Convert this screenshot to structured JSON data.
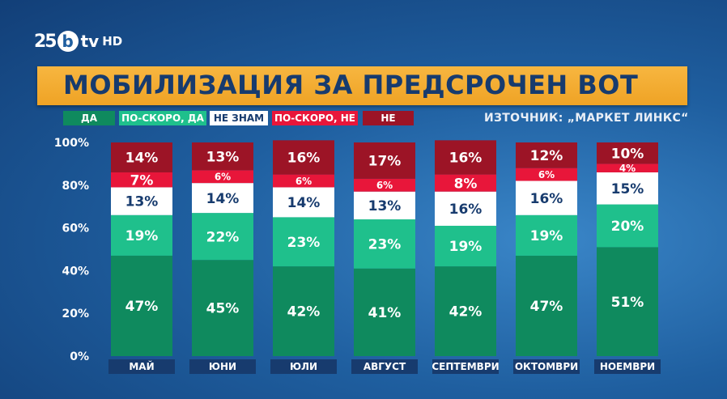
{
  "branding": {
    "anniversary": "25",
    "letter": "b",
    "tv": "tv",
    "hd": "HD"
  },
  "title": "МОБИЛИЗАЦИЯ ЗА ПРЕДСРОЧЕН ВОТ",
  "source": "ИЗТОЧНИК: „МАРКЕТ ЛИНКС“",
  "colors": {
    "da": "#0f8a5e",
    "po_skoro_da": "#1fc08c",
    "ne_znam": "#ffffff",
    "po_skoro_ne": "#e8163a",
    "ne": "#9c1426",
    "month_label_bg": "#173b6e"
  },
  "chart_data": {
    "type": "bar",
    "stacked": true,
    "categories": [
      "МАЙ",
      "ЮНИ",
      "ЮЛИ",
      "АВГУСТ",
      "СЕПТЕМВРИ",
      "ОКТОМВРИ",
      "НОЕМВРИ"
    ],
    "series": [
      {
        "name": "ДА",
        "color": "#0f8a5e",
        "values": [
          47,
          45,
          42,
          41,
          42,
          47,
          51
        ]
      },
      {
        "name": "ПО-СКОРО, ДА",
        "color": "#1fc08c",
        "values": [
          19,
          22,
          23,
          23,
          19,
          19,
          20
        ]
      },
      {
        "name": "НЕ ЗНАМ",
        "color": "#ffffff",
        "values": [
          13,
          14,
          14,
          13,
          16,
          16,
          15
        ]
      },
      {
        "name": "ПО-СКОРО, НЕ",
        "color": "#e8163a",
        "values": [
          7,
          6,
          6,
          6,
          8,
          6,
          4
        ]
      },
      {
        "name": "НЕ",
        "color": "#9c1426",
        "values": [
          14,
          13,
          16,
          17,
          16,
          12,
          10
        ]
      }
    ],
    "yticks": [
      "0%",
      "20%",
      "40%",
      "60%",
      "80%",
      "100%"
    ],
    "ylim": [
      0,
      100
    ],
    "legend_position": "top-left",
    "grid": false
  }
}
